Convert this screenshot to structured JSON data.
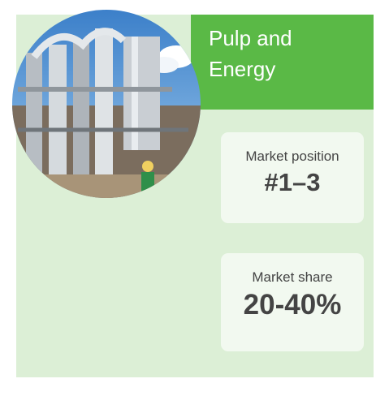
{
  "header": {
    "title": "Pulp and Energy"
  },
  "metrics": [
    {
      "label": "Market position",
      "value": "#1–3"
    },
    {
      "label": "Market share",
      "value": "20-40%"
    }
  ]
}
